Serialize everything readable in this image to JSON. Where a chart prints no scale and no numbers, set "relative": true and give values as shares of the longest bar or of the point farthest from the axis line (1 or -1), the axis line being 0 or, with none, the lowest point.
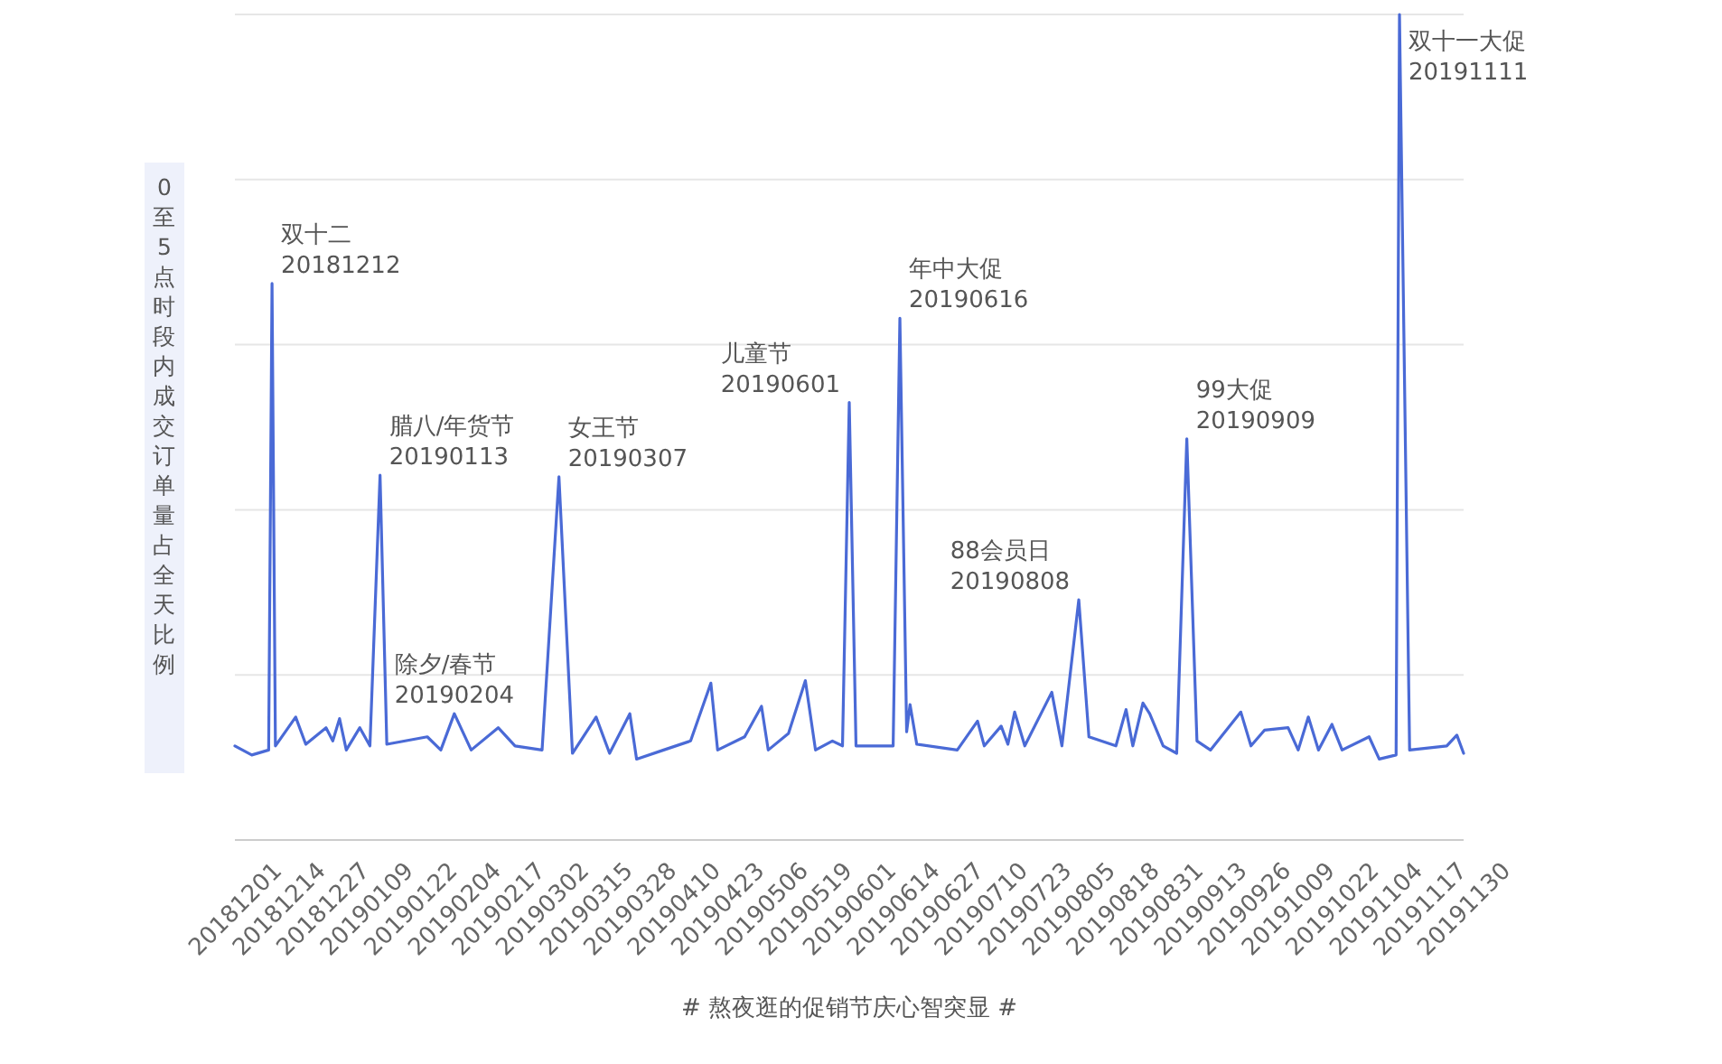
{
  "chart_data": {
    "type": "line",
    "relative": true,
    "xlabel": "# 熬夜逛的促销节庆心智突显 #",
    "ylabel": "0至5点时段内成交订单量占全天比例",
    "grid": "y",
    "xlim": [
      "2018-12-01",
      "2019-11-30"
    ],
    "xticks": [
      {
        "value": "2018-12-01",
        "label": "20181201"
      },
      {
        "value": "2018-12-14",
        "label": "20181214"
      },
      {
        "value": "2018-12-27",
        "label": "20181227"
      },
      {
        "value": "2019-01-09",
        "label": "20190109"
      },
      {
        "value": "2019-01-22",
        "label": "20190122"
      },
      {
        "value": "2019-02-04",
        "label": "20190204"
      },
      {
        "value": "2019-02-17",
        "label": "20190217"
      },
      {
        "value": "2019-03-02",
        "label": "20190302"
      },
      {
        "value": "2019-03-15",
        "label": "20190315"
      },
      {
        "value": "2019-03-28",
        "label": "20190328"
      },
      {
        "value": "2019-04-10",
        "label": "20190410"
      },
      {
        "value": "2019-04-23",
        "label": "20190423"
      },
      {
        "value": "2019-05-06",
        "label": "20190506"
      },
      {
        "value": "2019-05-19",
        "label": "20190519"
      },
      {
        "value": "2019-06-01",
        "label": "20190601"
      },
      {
        "value": "2019-06-14",
        "label": "20190614"
      },
      {
        "value": "2019-06-27",
        "label": "20190627"
      },
      {
        "value": "2019-07-10",
        "label": "20190710"
      },
      {
        "value": "2019-07-23",
        "label": "20190723"
      },
      {
        "value": "2019-08-05",
        "label": "20190805"
      },
      {
        "value": "2019-08-18",
        "label": "20190818"
      },
      {
        "value": "2019-08-31",
        "label": "20190831"
      },
      {
        "value": "2019-09-13",
        "label": "20190913"
      },
      {
        "value": "2019-09-26",
        "label": "20190926"
      },
      {
        "value": "2019-10-09",
        "label": "20191009"
      },
      {
        "value": "2019-10-22",
        "label": "20191022"
      },
      {
        "value": "2019-11-04",
        "label": "20191104"
      },
      {
        "value": "2019-11-17",
        "label": "20191117"
      },
      {
        "value": "2019-11-30",
        "label": "20191130"
      }
    ],
    "x": [
      "2018-12-01",
      "2018-12-06",
      "2018-12-11",
      "2018-12-12",
      "2018-12-13",
      "2018-12-19",
      "2018-12-22",
      "2018-12-28",
      "2018-12-30",
      "2019-01-01",
      "2019-01-03",
      "2019-01-07",
      "2019-01-10",
      "2019-01-13",
      "2019-01-15",
      "2019-01-27",
      "2019-01-31",
      "2019-02-04",
      "2019-02-09",
      "2019-02-17",
      "2019-02-22",
      "2019-03-02",
      "2019-03-07",
      "2019-03-11",
      "2019-03-18",
      "2019-03-22",
      "2019-03-28",
      "2019-03-30",
      "2019-04-07",
      "2019-04-15",
      "2019-04-21",
      "2019-04-23",
      "2019-05-01",
      "2019-05-06",
      "2019-05-08",
      "2019-05-14",
      "2019-05-19",
      "2019-05-22",
      "2019-05-27",
      "2019-05-30",
      "2019-06-01",
      "2019-06-03",
      "2019-06-14",
      "2019-06-16",
      "2019-06-18",
      "2019-06-19",
      "2019-06-21",
      "2019-07-03",
      "2019-07-09",
      "2019-07-11",
      "2019-07-16",
      "2019-07-18",
      "2019-07-20",
      "2019-07-23",
      "2019-07-31",
      "2019-08-03",
      "2019-08-08",
      "2019-08-11",
      "2019-08-19",
      "2019-08-22",
      "2019-08-24",
      "2019-08-27",
      "2019-08-29",
      "2019-09-02",
      "2019-09-06",
      "2019-09-09",
      "2019-09-12",
      "2019-09-16",
      "2019-09-25",
      "2019-09-28",
      "2019-10-02",
      "2019-10-09",
      "2019-10-12",
      "2019-10-15",
      "2019-10-18",
      "2019-10-22",
      "2019-10-25",
      "2019-11-02",
      "2019-11-05",
      "2019-11-10",
      "2019-11-11",
      "2019-11-14",
      "2019-11-25",
      "2019-11-28",
      "2019-11-30"
    ],
    "series": [
      {
        "color": "#4a6ad6",
        "values": [
          0.114,
          0.103,
          0.109,
          0.674,
          0.114,
          0.149,
          0.116,
          0.136,
          0.12,
          0.147,
          0.109,
          0.136,
          0.114,
          0.442,
          0.116,
          0.125,
          0.109,
          0.153,
          0.109,
          0.136,
          0.114,
          0.109,
          0.44,
          0.105,
          0.149,
          0.105,
          0.153,
          0.098,
          0.109,
          0.12,
          0.19,
          0.109,
          0.125,
          0.162,
          0.109,
          0.129,
          0.193,
          0.109,
          0.12,
          0.114,
          0.53,
          0.114,
          0.114,
          0.632,
          0.131,
          0.164,
          0.116,
          0.109,
          0.144,
          0.114,
          0.138,
          0.116,
          0.155,
          0.114,
          0.179,
          0.114,
          0.291,
          0.125,
          0.114,
          0.158,
          0.114,
          0.166,
          0.153,
          0.114,
          0.105,
          0.486,
          0.12,
          0.109,
          0.155,
          0.114,
          0.133,
          0.136,
          0.109,
          0.149,
          0.109,
          0.14,
          0.109,
          0.125,
          0.098,
          0.103,
          1.0,
          0.109,
          0.114,
          0.127,
          0.105
        ]
      }
    ],
    "annotations": [
      {
        "text": "双十二\n20181212",
        "x": "2018-12-12",
        "y": 0.674
      },
      {
        "text": "腊八/年货节\n20190113",
        "x": "2019-01-13",
        "y": 0.442
      },
      {
        "text": "除夕/春节\n20190204",
        "x": "2019-02-04",
        "y": 0.153
      },
      {
        "text": "女王节\n20190307",
        "x": "2019-03-07",
        "y": 0.44
      },
      {
        "text": "儿童节\n20190601",
        "x": "2019-06-01",
        "y": 0.53
      },
      {
        "text": "年中大促\n20190616",
        "x": "2019-06-16",
        "y": 0.632
      },
      {
        "text": "88会员日\n20190808",
        "x": "2019-08-08",
        "y": 0.291
      },
      {
        "text": "99大促\n20190909",
        "x": "2019-09-09",
        "y": 0.486
      },
      {
        "text": "双十一大促\n20191111",
        "x": "2019-11-11",
        "y": 1.0
      }
    ]
  }
}
